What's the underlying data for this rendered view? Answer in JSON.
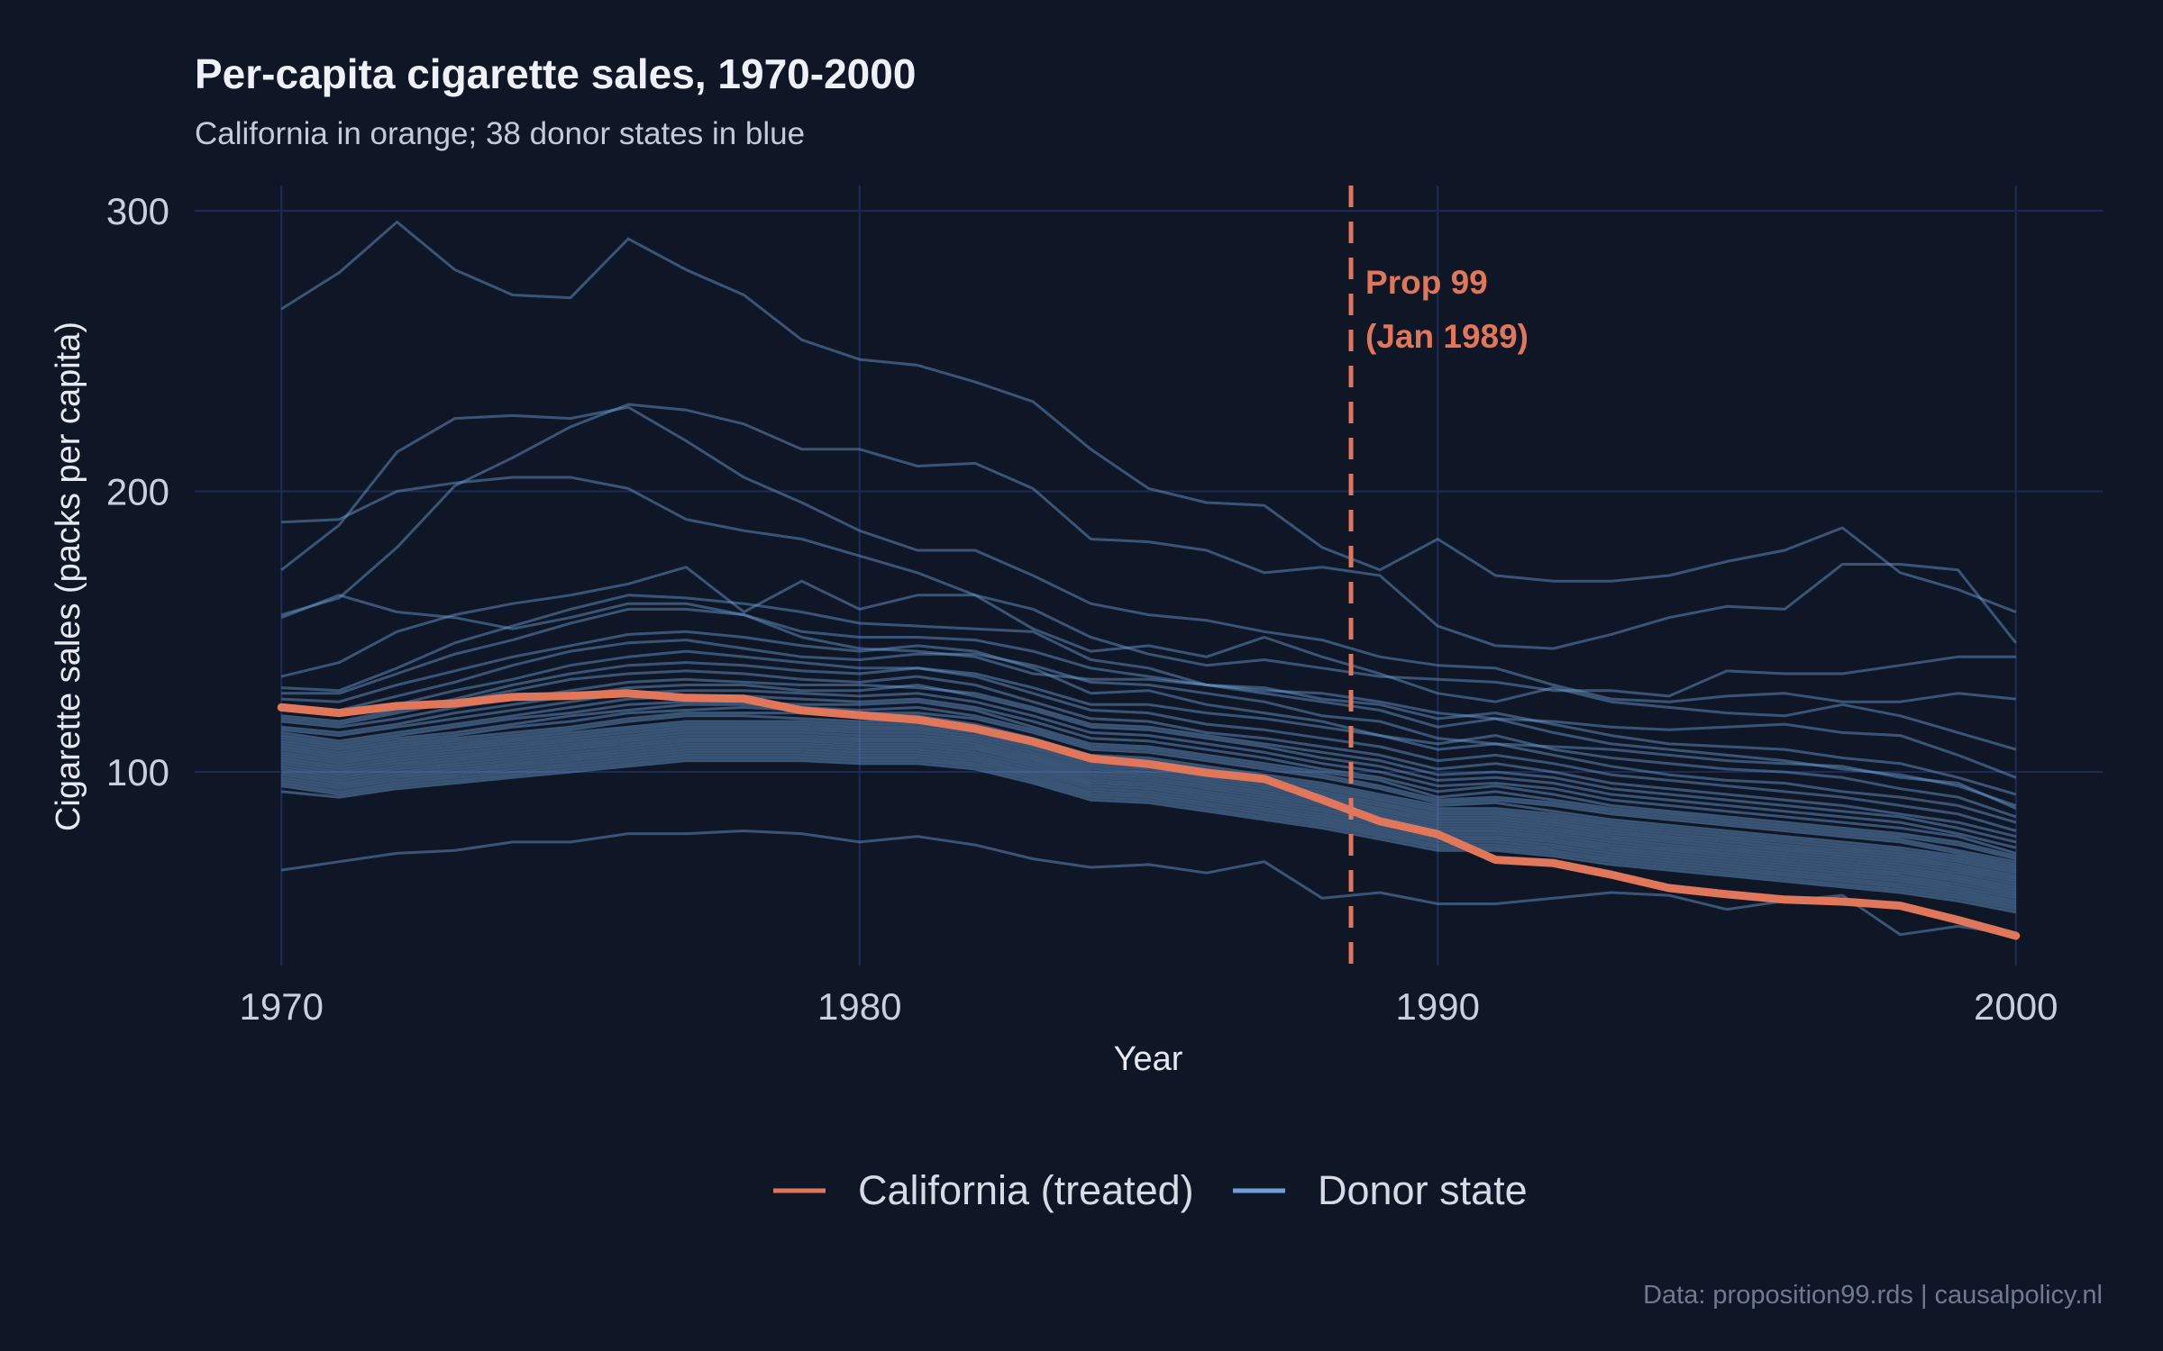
{
  "chart_data": {
    "type": "line",
    "title": "Per-capita cigarette sales, 1970-2000",
    "subtitle": "California in orange; 38 donor states in blue",
    "xlabel": "Year",
    "ylabel": "Cigarette sales (packs per capita)",
    "xlim": [
      1968.5,
      2001.5
    ],
    "ylim": [
      31,
      309
    ],
    "x_ticks": [
      1970,
      1980,
      1990,
      2000
    ],
    "y_ticks": [
      100,
      200,
      300
    ],
    "grid": true,
    "x": [
      1970,
      1971,
      1972,
      1973,
      1974,
      1975,
      1976,
      1977,
      1978,
      1979,
      1980,
      1981,
      1982,
      1983,
      1984,
      1985,
      1986,
      1987,
      1988,
      1989,
      1990,
      1991,
      1992,
      1993,
      1994,
      1995,
      1996,
      1997,
      1998,
      1999,
      2000
    ],
    "treated": {
      "name": "California (treated)",
      "color": "#e0775a",
      "values": [
        123,
        121,
        123.5,
        124.4,
        126.7,
        127.1,
        128,
        126.4,
        126.1,
        121.9,
        120.2,
        118.6,
        115.4,
        110.8,
        104.8,
        102.8,
        99.7,
        97.5,
        90.1,
        82.4,
        77.8,
        68.7,
        67.5,
        63.4,
        58.6,
        56.4,
        54.5,
        53.8,
        52.3,
        47.2,
        41.6
      ]
    },
    "donor_legend": "Donor state",
    "donor_color": "#6f9fd6",
    "donors": [
      [
        265,
        278,
        296,
        279,
        270,
        269,
        290,
        279,
        270,
        254,
        247,
        245,
        239,
        232,
        215,
        201,
        196,
        195,
        180,
        172,
        183,
        170,
        168,
        168,
        170,
        175,
        179,
        187,
        171,
        165,
        157
      ],
      [
        189,
        190,
        200,
        203,
        205,
        205,
        201,
        190,
        186,
        183,
        177,
        171,
        163,
        151,
        143,
        145,
        141,
        148,
        141,
        135,
        128,
        125,
        130,
        125,
        123,
        121,
        120,
        124,
        120,
        114,
        108
      ],
      [
        172,
        188,
        214,
        226,
        227,
        226,
        230,
        218,
        205,
        196,
        186,
        179,
        179,
        170,
        160,
        156,
        154,
        150,
        147,
        141,
        138,
        137,
        131,
        126,
        125,
        127,
        128,
        125,
        125,
        128,
        126
      ],
      [
        156,
        162,
        180,
        202,
        212,
        223,
        231,
        229,
        224,
        215,
        215,
        209,
        210,
        201,
        183,
        182,
        179,
        171,
        173,
        170,
        152,
        145,
        144,
        149,
        155,
        159,
        158,
        174,
        174,
        172,
        146
      ],
      [
        155,
        163,
        157,
        155,
        151,
        155,
        160,
        160,
        156,
        148,
        144,
        143,
        141,
        135,
        133,
        133,
        131,
        129,
        128,
        125,
        121,
        119,
        118,
        116,
        115,
        116,
        117,
        114,
        113,
        106,
        98
      ],
      [
        134,
        139,
        150,
        156,
        160,
        163,
        167,
        173,
        157,
        168,
        158,
        163,
        163,
        158,
        148,
        142,
        138,
        140,
        137,
        134,
        133,
        132,
        129,
        129,
        127,
        136,
        135,
        135,
        138,
        141,
        141
      ],
      [
        130,
        129,
        137,
        146,
        152,
        158,
        163,
        162,
        160,
        157,
        153,
        152,
        151,
        150,
        140,
        137,
        131,
        130,
        126,
        124,
        119,
        121,
        117,
        113,
        110,
        109,
        108,
        105,
        103,
        98,
        92
      ],
      [
        128,
        128,
        135,
        142,
        147,
        153,
        158,
        158,
        156,
        150,
        148,
        148,
        147,
        143,
        137,
        134,
        131,
        128,
        125,
        122,
        116,
        119,
        114,
        110,
        108,
        106,
        104,
        101,
        99,
        95,
        88
      ],
      [
        126,
        125,
        131,
        136,
        141,
        145,
        149,
        150,
        148,
        145,
        143,
        145,
        143,
        137,
        128,
        129,
        124,
        121,
        118,
        113,
        110,
        113,
        108,
        105,
        103,
        101,
        100,
        98,
        94,
        91,
        84
      ],
      [
        124,
        122,
        127,
        132,
        138,
        143,
        146,
        147,
        144,
        141,
        140,
        142,
        142,
        138,
        132,
        131,
        128,
        125,
        120,
        118,
        112,
        110,
        109,
        108,
        106,
        104,
        103,
        102,
        98,
        96,
        87
      ],
      [
        122,
        120,
        124,
        129,
        133,
        138,
        141,
        143,
        141,
        139,
        137,
        137,
        135,
        130,
        124,
        124,
        121,
        119,
        116,
        113,
        108,
        110,
        106,
        102,
        99,
        97,
        96,
        93,
        91,
        88,
        82
      ],
      [
        120,
        118,
        122,
        126,
        131,
        135,
        138,
        139,
        138,
        136,
        135,
        137,
        134,
        128,
        122,
        121,
        117,
        115,
        112,
        109,
        104,
        106,
        103,
        99,
        97,
        95,
        93,
        91,
        88,
        85,
        79
      ],
      [
        119,
        117,
        121,
        125,
        129,
        133,
        135,
        136,
        135,
        133,
        132,
        134,
        131,
        125,
        119,
        118,
        114,
        112,
        109,
        106,
        101,
        103,
        100,
        96,
        94,
        92,
        90,
        88,
        85,
        82,
        77
      ],
      [
        118,
        116,
        119,
        123,
        126,
        129,
        132,
        133,
        132,
        131,
        131,
        130,
        128,
        123,
        117,
        116,
        113,
        110,
        107,
        104,
        99,
        100,
        98,
        94,
        92,
        90,
        88,
        86,
        84,
        80,
        75
      ],
      [
        116,
        114,
        117,
        121,
        124,
        127,
        130,
        131,
        131,
        129,
        129,
        131,
        127,
        122,
        116,
        115,
        112,
        109,
        105,
        102,
        97,
        98,
        96,
        92,
        90,
        88,
        86,
        84,
        82,
        78,
        73
      ],
      [
        115,
        113,
        116,
        119,
        122,
        125,
        128,
        129,
        129,
        128,
        127,
        128,
        125,
        120,
        114,
        113,
        110,
        107,
        103,
        100,
        95,
        96,
        94,
        90,
        88,
        86,
        84,
        82,
        80,
        77,
        71
      ],
      [
        114,
        111,
        114,
        117,
        120,
        123,
        126,
        127,
        127,
        126,
        125,
        126,
        123,
        118,
        112,
        111,
        108,
        105,
        101,
        98,
        93,
        95,
        92,
        88,
        86,
        84,
        82,
        80,
        78,
        75,
        70
      ],
      [
        113,
        110,
        113,
        116,
        119,
        121,
        124,
        125,
        125,
        124,
        124,
        125,
        122,
        116,
        110,
        109,
        106,
        103,
        100,
        97,
        91,
        93,
        90,
        87,
        85,
        83,
        81,
        79,
        77,
        74,
        69
      ],
      [
        112,
        109,
        112,
        114,
        117,
        120,
        122,
        124,
        124,
        123,
        122,
        123,
        120,
        115,
        109,
        108,
        105,
        102,
        99,
        95,
        90,
        91,
        89,
        86,
        84,
        82,
        80,
        78,
        76,
        72,
        68
      ],
      [
        111,
        108,
        111,
        113,
        116,
        118,
        121,
        122,
        123,
        122,
        121,
        121,
        119,
        114,
        108,
        107,
        104,
        101,
        98,
        94,
        89,
        90,
        88,
        85,
        83,
        81,
        79,
        77,
        75,
        71,
        67
      ],
      [
        110,
        107,
        110,
        112,
        114,
        116,
        119,
        121,
        121,
        121,
        120,
        120,
        117,
        112,
        106,
        105,
        102,
        99,
        96,
        92,
        88,
        89,
        86,
        83,
        81,
        79,
        77,
        75,
        73,
        70,
        66
      ],
      [
        109,
        106,
        109,
        111,
        113,
        115,
        118,
        120,
        120,
        119,
        118,
        118,
        116,
        111,
        105,
        104,
        101,
        98,
        95,
        91,
        87,
        87,
        85,
        82,
        80,
        78,
        76,
        74,
        72,
        69,
        65
      ],
      [
        108,
        105,
        108,
        110,
        112,
        114,
        116,
        118,
        118,
        118,
        117,
        117,
        115,
        110,
        104,
        103,
        100,
        97,
        94,
        90,
        86,
        86,
        84,
        81,
        79,
        77,
        75,
        73,
        71,
        68,
        64
      ],
      [
        107,
        104,
        107,
        109,
        111,
        113,
        115,
        117,
        117,
        117,
        116,
        116,
        114,
        109,
        103,
        102,
        99,
        96,
        93,
        89,
        85,
        85,
        83,
        80,
        78,
        76,
        74,
        72,
        70,
        67,
        63
      ],
      [
        106,
        103,
        106,
        108,
        110,
        112,
        114,
        116,
        116,
        116,
        115,
        115,
        113,
        108,
        102,
        101,
        98,
        95,
        92,
        88,
        84,
        84,
        82,
        79,
        77,
        75,
        73,
        71,
        69,
        66,
        62
      ],
      [
        105,
        102,
        105,
        107,
        109,
        111,
        113,
        115,
        115,
        115,
        114,
        114,
        112,
        107,
        101,
        100,
        97,
        94,
        91,
        87,
        83,
        83,
        81,
        78,
        76,
        74,
        72,
        70,
        68,
        65,
        61
      ],
      [
        104,
        101,
        104,
        106,
        108,
        110,
        112,
        114,
        114,
        114,
        113,
        113,
        111,
        106,
        100,
        99,
        96,
        93,
        90,
        86,
        82,
        82,
        80,
        77,
        75,
        73,
        71,
        69,
        67,
        64,
        60
      ],
      [
        103,
        100,
        103,
        105,
        107,
        109,
        111,
        113,
        113,
        113,
        112,
        112,
        110,
        105,
        99,
        98,
        95,
        92,
        89,
        85,
        81,
        81,
        79,
        76,
        74,
        72,
        70,
        68,
        66,
        63,
        59
      ],
      [
        102,
        99,
        102,
        104,
        106,
        108,
        110,
        112,
        112,
        112,
        111,
        111,
        109,
        104,
        98,
        97,
        94,
        91,
        88,
        84,
        80,
        80,
        78,
        75,
        73,
        71,
        69,
        67,
        65,
        62,
        58
      ],
      [
        101,
        98,
        101,
        103,
        105,
        107,
        109,
        111,
        111,
        111,
        110,
        110,
        108,
        103,
        97,
        96,
        93,
        90,
        87,
        83,
        79,
        79,
        77,
        74,
        72,
        70,
        68,
        66,
        64,
        61,
        57
      ],
      [
        100,
        97,
        100,
        102,
        104,
        106,
        108,
        110,
        110,
        110,
        109,
        109,
        107,
        102,
        96,
        95,
        92,
        89,
        86,
        82,
        78,
        78,
        76,
        73,
        71,
        69,
        67,
        65,
        63,
        60,
        56
      ],
      [
        99,
        96,
        99,
        101,
        103,
        105,
        107,
        109,
        109,
        109,
        108,
        108,
        106,
        101,
        95,
        94,
        91,
        88,
        85,
        81,
        77,
        77,
        75,
        72,
        70,
        68,
        66,
        64,
        62,
        59,
        55
      ],
      [
        98,
        95,
        98,
        100,
        102,
        104,
        106,
        108,
        108,
        108,
        107,
        107,
        105,
        100,
        94,
        93,
        90,
        87,
        84,
        80,
        76,
        76,
        74,
        71,
        69,
        67,
        65,
        63,
        61,
        58,
        54
      ],
      [
        97,
        94,
        97,
        99,
        101,
        103,
        105,
        107,
        107,
        107,
        106,
        106,
        104,
        99,
        93,
        92,
        89,
        86,
        83,
        79,
        75,
        75,
        73,
        70,
        68,
        66,
        64,
        62,
        60,
        57,
        53
      ],
      [
        96,
        93,
        96,
        98,
        100,
        102,
        104,
        106,
        106,
        106,
        105,
        105,
        103,
        98,
        92,
        91,
        88,
        85,
        82,
        78,
        74,
        74,
        72,
        69,
        67,
        65,
        63,
        61,
        59,
        56,
        52
      ],
      [
        95,
        92,
        95,
        97,
        99,
        101,
        103,
        105,
        105,
        105,
        104,
        104,
        102,
        97,
        91,
        90,
        87,
        84,
        81,
        77,
        73,
        73,
        71,
        68,
        66,
        64,
        62,
        60,
        58,
        55,
        51
      ],
      [
        93,
        91,
        94,
        96,
        98,
        100,
        102,
        104,
        104,
        104,
        103,
        103,
        101,
        96,
        90,
        89,
        86,
        83,
        80,
        76,
        72,
        72,
        70,
        67,
        65,
        63,
        61,
        59,
        57,
        54,
        50
      ],
      [
        65,
        68,
        71,
        72,
        75,
        75,
        78,
        78,
        79,
        78,
        75,
        77,
        74,
        69,
        66,
        67,
        64,
        68,
        55,
        57,
        53,
        53,
        55,
        57,
        56,
        51,
        54,
        56,
        42,
        45,
        42
      ]
    ],
    "annotations": [
      {
        "x": 1988.5,
        "text_lines": [
          "Prop 99",
          "(Jan 1989)"
        ]
      }
    ],
    "legend_position": "bottom",
    "caption": "Data: proposition99.rds  |  causalpolicy.nl"
  }
}
